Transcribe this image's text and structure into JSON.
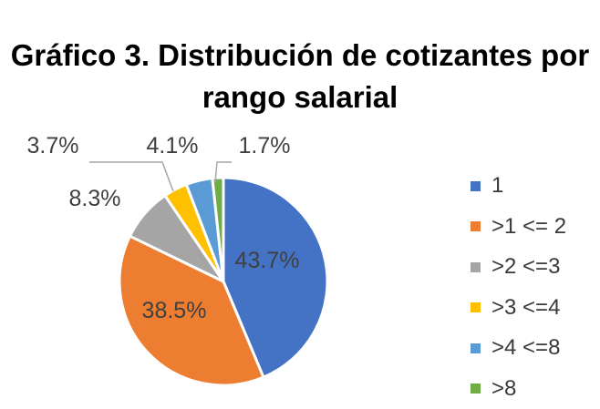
{
  "chart_data": {
    "type": "pie",
    "title": "Gráfico 3. Distribución de cotizantes por rango salarial",
    "title_lines": [
      "Gráfico 3. Distribución de cotizantes por",
      "rango salarial"
    ],
    "categories": [
      "1",
      ">1 <= 2",
      ">2 <=3",
      ">3 <=4",
      ">4 <=8",
      ">8"
    ],
    "values": [
      43.7,
      38.5,
      8.3,
      3.7,
      4.1,
      1.7
    ],
    "value_labels": [
      "43.7%",
      "38.5%",
      "8.3%",
      "3.7%",
      "4.1%",
      "1.7%"
    ],
    "colors": [
      "#4472C4",
      "#ED7D31",
      "#A5A5A5",
      "#FFC000",
      "#5B9BD5",
      "#70AD47"
    ],
    "legend_position": "right"
  }
}
